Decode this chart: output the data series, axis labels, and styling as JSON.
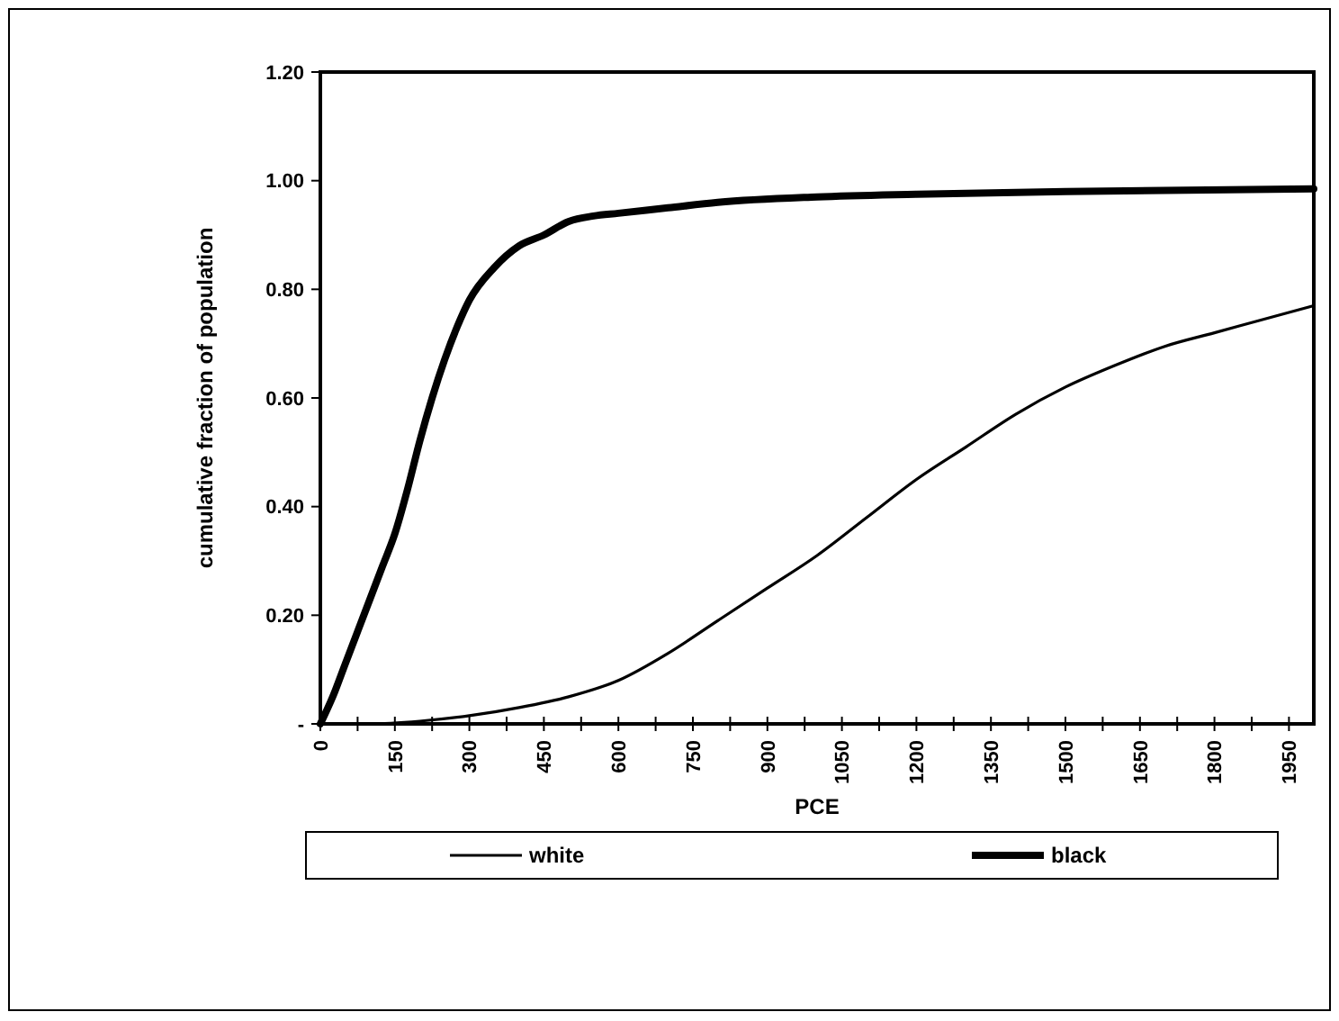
{
  "chart_data": {
    "type": "line",
    "xlabel": "PCE",
    "ylabel": "cumulative fraction of population",
    "xlim": [
      0,
      2000
    ],
    "xticks": [
      0,
      {
        "value": 75,
        "label": null
      },
      150,
      {
        "value": 225,
        "label": null
      },
      300,
      {
        "value": 375,
        "label": null
      },
      450,
      {
        "value": 525,
        "label": null
      },
      600,
      {
        "value": 675,
        "label": null
      },
      750,
      {
        "value": 825,
        "label": null
      },
      900,
      {
        "value": 975,
        "label": null
      },
      1050,
      {
        "value": 1125,
        "label": null
      },
      1200,
      {
        "value": 1275,
        "label": null
      },
      1350,
      {
        "value": 1425,
        "label": null
      },
      1500,
      {
        "value": 1575,
        "label": null
      },
      1650,
      {
        "value": 1725,
        "label": null
      },
      1800,
      {
        "value": 1875,
        "label": null
      },
      1950
    ],
    "ylim": [
      0,
      1.2
    ],
    "yticks": [
      {
        "value": 0,
        "label": "-"
      },
      {
        "value": 0.2,
        "label": "0.20"
      },
      {
        "value": 0.4,
        "label": "0.40"
      },
      {
        "value": 0.6,
        "label": "0.60"
      },
      {
        "value": 0.8,
        "label": "0.80"
      },
      {
        "value": 1,
        "label": "1.00"
      },
      {
        "value": 1.2,
        "label": "1.20"
      }
    ],
    "grid": false,
    "legend": "bottom",
    "marker": "none",
    "line_style": "solid",
    "series": [
      {
        "name": "white",
        "color": "#000000",
        "x": [
          0,
          100,
          200,
          300,
          400,
          500,
          600,
          700,
          800,
          900,
          1000,
          1100,
          1200,
          1300,
          1400,
          1500,
          1600,
          1700,
          1800,
          1900,
          2000
        ],
        "values": [
          0,
          0,
          0.005,
          0.015,
          0.03,
          0.05,
          0.08,
          0.13,
          0.19,
          0.25,
          0.31,
          0.38,
          0.45,
          0.51,
          0.57,
          0.62,
          0.66,
          0.695,
          0.72,
          0.745,
          0.77
        ]
      },
      {
        "name": "black",
        "color": "#000000",
        "x": [
          0,
          25,
          50,
          75,
          100,
          125,
          150,
          175,
          200,
          225,
          250,
          275,
          300,
          350,
          400,
          450,
          500,
          550,
          600,
          700,
          800,
          1000,
          1200,
          1500,
          2000
        ],
        "values": [
          0,
          0.05,
          0.11,
          0.17,
          0.23,
          0.29,
          0.35,
          0.43,
          0.52,
          0.6,
          0.67,
          0.73,
          0.78,
          0.84,
          0.88,
          0.9,
          0.925,
          0.935,
          0.94,
          0.95,
          0.96,
          0.97,
          0.975,
          0.98,
          0.985
        ]
      }
    ]
  }
}
